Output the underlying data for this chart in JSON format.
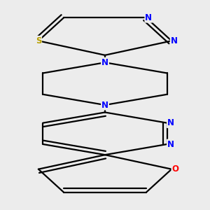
{
  "bg_color": "#ececec",
  "bond_color": "#000000",
  "bond_width": 1.6,
  "atom_colors": {
    "N": "#0000ff",
    "S": "#b8a000",
    "O": "#ff0000"
  },
  "font_size": 8.5,
  "dbo": 0.018
}
